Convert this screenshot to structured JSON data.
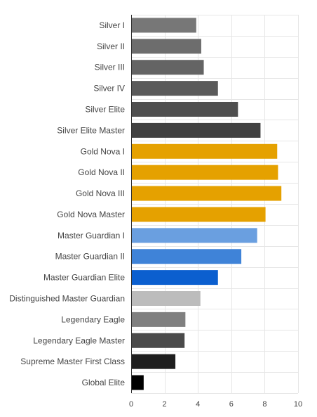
{
  "chart_data": {
    "type": "bar",
    "orientation": "horizontal",
    "title": "",
    "xlabel": "",
    "ylabel": "",
    "xlim": [
      0,
      10
    ],
    "xticks": [
      0,
      2,
      4,
      6,
      8,
      10
    ],
    "grid": true,
    "legend": "none",
    "categories": [
      "Silver I",
      "Silver II",
      "Silver III",
      "Silver IV",
      "Silver Elite",
      "Silver Elite Master",
      "Gold Nova I",
      "Gold Nova II",
      "Gold Nova III",
      "Gold Nova Master",
      "Master Guardian I",
      "Master Guardian II",
      "Master Guardian Elite",
      "Distinguished Master Guardian",
      "Legendary Eagle",
      "Legendary Eagle Master",
      "Supreme Master First Class",
      "Global Elite"
    ],
    "values": [
      3.9,
      4.2,
      4.35,
      5.2,
      6.4,
      7.75,
      8.75,
      8.8,
      9.0,
      8.05,
      7.55,
      6.6,
      5.2,
      4.15,
      3.25,
      3.2,
      2.65,
      0.75
    ],
    "colors": [
      "#777777",
      "#6d6d6d",
      "#646464",
      "#5a5a5a",
      "#4f4f4f",
      "#414141",
      "#e5a100",
      "#e5a100",
      "#e5a100",
      "#e5a100",
      "#6a9fe0",
      "#3f83d8",
      "#0b5fcf",
      "#bcbcbc",
      "#808080",
      "#4a4a4a",
      "#1e1e1e",
      "#000000"
    ]
  }
}
